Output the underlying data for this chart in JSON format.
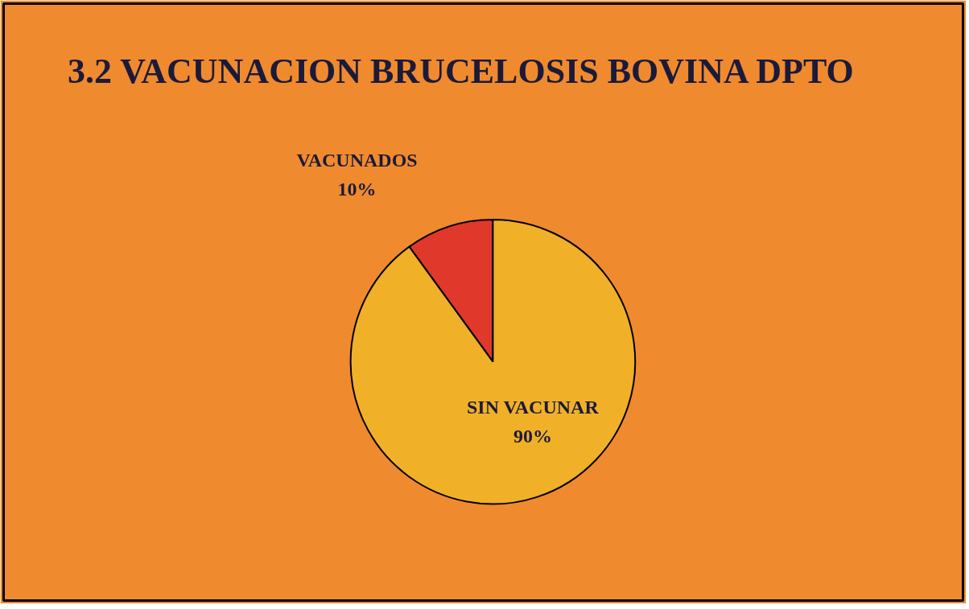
{
  "chart_data": {
    "type": "pie",
    "title": "3.2 VACUNACION BRUCELOSIS BOVINA DPTO",
    "categories": [
      "VACUNADOS",
      "SIN VACUNAR"
    ],
    "values": [
      10,
      90
    ],
    "colors": [
      "#e0382a",
      "#f0b028"
    ],
    "value_labels": [
      "10%",
      "90%"
    ]
  }
}
